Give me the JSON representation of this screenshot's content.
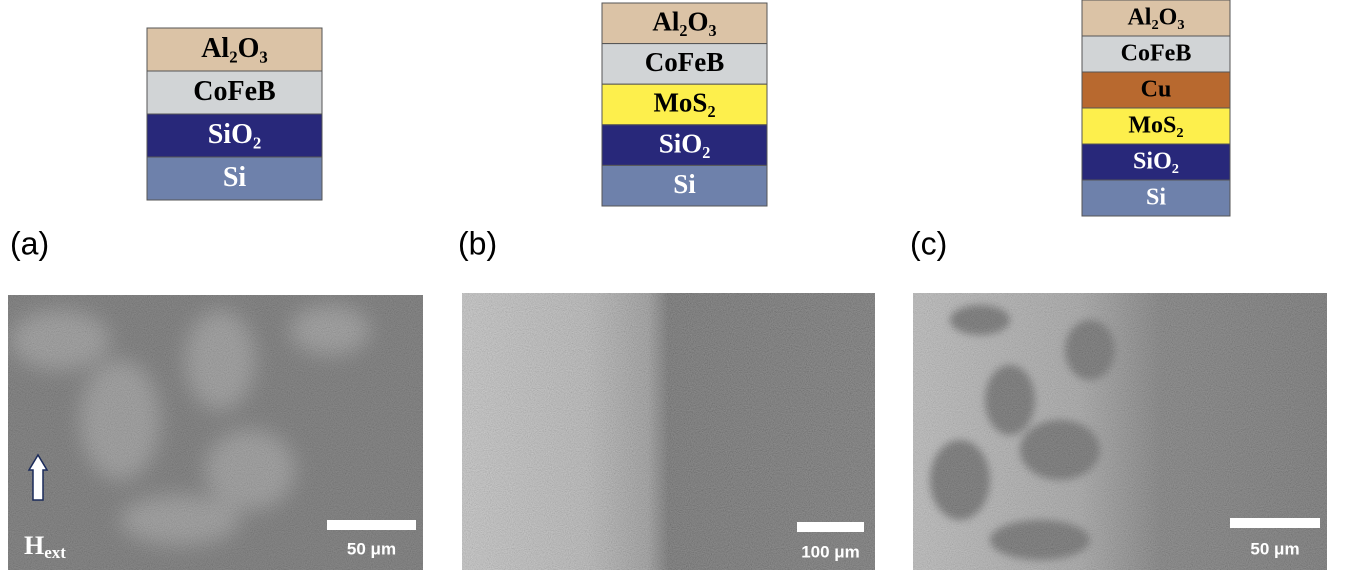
{
  "panels": [
    {
      "label": "(a)",
      "layers": [
        {
          "name": "Al₂O₃",
          "color": "#dbc3a6",
          "text_color": "#000000"
        },
        {
          "name": "CoFeB",
          "color": "#d1d4d6",
          "text_color": "#000000"
        },
        {
          "name": "SiO₂",
          "color": "#28287a",
          "text_color": "#ffffff"
        },
        {
          "name": "Si",
          "color": "#6e81ab",
          "text_color": "#ffffff"
        }
      ],
      "scale_bar": "50 μm",
      "field_label": {
        "symbol": "H",
        "subscript": "ext"
      }
    },
    {
      "label": "(b)",
      "layers": [
        {
          "name": "Al₂O₃",
          "color": "#dbc3a6",
          "text_color": "#000000"
        },
        {
          "name": "CoFeB",
          "color": "#d1d4d6",
          "text_color": "#000000"
        },
        {
          "name": "MoS₂",
          "color": "#fdef4c",
          "text_color": "#000000"
        },
        {
          "name": "SiO₂",
          "color": "#28287a",
          "text_color": "#ffffff"
        },
        {
          "name": "Si",
          "color": "#6e81ab",
          "text_color": "#ffffff"
        }
      ],
      "scale_bar": "100 μm"
    },
    {
      "label": "(c)",
      "layers": [
        {
          "name": "Al₂O₃",
          "color": "#dbc3a6",
          "text_color": "#000000"
        },
        {
          "name": "CoFeB",
          "color": "#d1d4d6",
          "text_color": "#000000"
        },
        {
          "name": "Cu",
          "color": "#b8692f",
          "text_color": "#000000"
        },
        {
          "name": "MoS₂",
          "color": "#fdef4c",
          "text_color": "#000000"
        },
        {
          "name": "SiO₂",
          "color": "#28287a",
          "text_color": "#ffffff"
        },
        {
          "name": "Si",
          "color": "#6e81ab",
          "text_color": "#ffffff"
        }
      ],
      "scale_bar": "50 μm"
    }
  ]
}
